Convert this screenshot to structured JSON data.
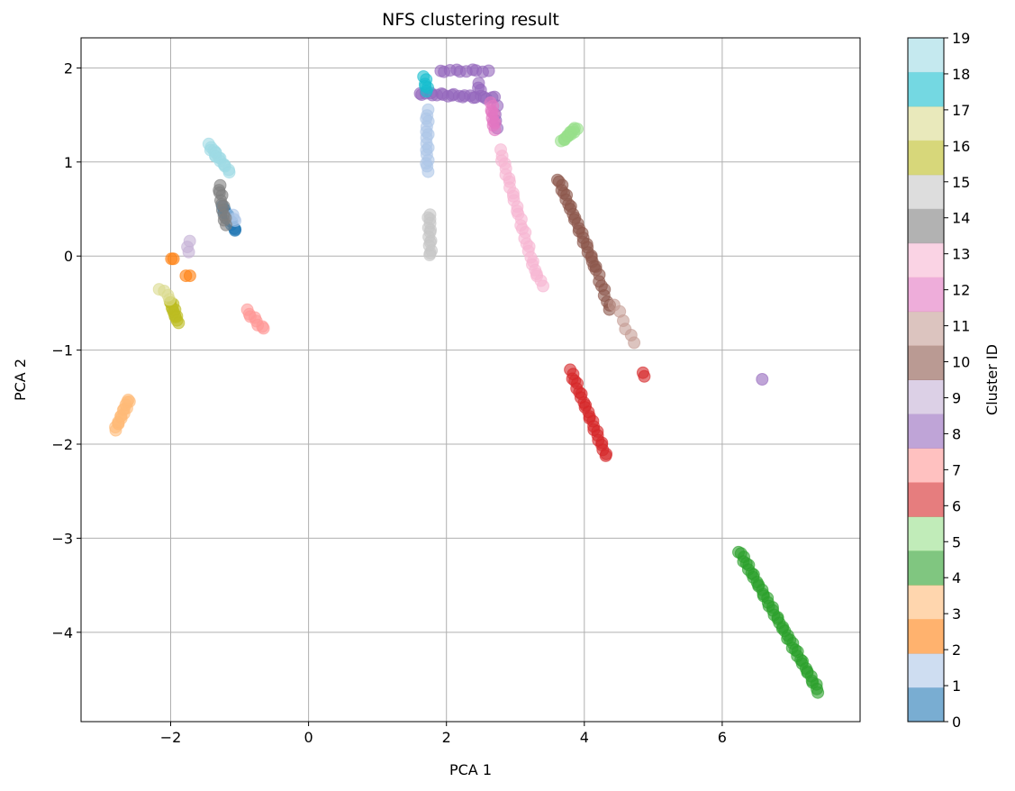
{
  "chart_data": {
    "type": "scatter",
    "title": "NFS clustering result",
    "xlabel": "PCA 1",
    "ylabel": "PCA 2",
    "xlim": [
      -3.3,
      8.0
    ],
    "ylim": [
      -4.95,
      2.32
    ],
    "xticks": [
      -2,
      0,
      2,
      4,
      6
    ],
    "yticks": [
      -4,
      -3,
      -2,
      -1,
      0,
      1,
      2
    ],
    "grid": true,
    "marker_alpha": 0.6,
    "colorbar": {
      "label": "Cluster ID",
      "ticks": [
        0,
        1,
        2,
        3,
        4,
        5,
        6,
        7,
        8,
        9,
        10,
        11,
        12,
        13,
        14,
        15,
        16,
        17,
        18,
        19
      ],
      "colors": [
        "#1f77b4",
        "#aec7e8",
        "#ff7f0e",
        "#ffbb78",
        "#2ca02c",
        "#98df8a",
        "#d62728",
        "#ff9896",
        "#9467bd",
        "#c5b0d5",
        "#8c564b",
        "#c49c94",
        "#e377c2",
        "#f7b6d2",
        "#7f7f7f",
        "#c7c7c7",
        "#bcbd22",
        "#dbdb8d",
        "#17becf",
        "#9edae5"
      ]
    },
    "clusters": [
      {
        "id": 0,
        "segments": [
          [
            -1.25,
            0.52,
            -1.05,
            0.26,
            12
          ]
        ]
      },
      {
        "id": 1,
        "segments": [
          [
            -1.08,
            0.37,
            -1.08,
            0.44,
            3
          ],
          [
            1.72,
            1.55,
            1.72,
            0.9,
            16
          ]
        ]
      },
      {
        "id": 2,
        "segments": [
          [
            -1.99,
            -0.03,
            -1.96,
            -0.03,
            2
          ],
          [
            -1.78,
            -0.21,
            -1.72,
            -0.21,
            2
          ]
        ]
      },
      {
        "id": 3,
        "segments": [
          [
            -2.8,
            -1.84,
            -2.6,
            -1.52,
            16
          ]
        ]
      },
      {
        "id": 4,
        "segments": [
          [
            6.25,
            -3.14,
            7.4,
            -4.63,
            48
          ]
        ]
      },
      {
        "id": 5,
        "segments": [
          [
            3.68,
            1.22,
            3.88,
            1.36,
            14
          ]
        ]
      },
      {
        "id": 6,
        "segments": [
          [
            3.8,
            -1.22,
            4.32,
            -2.13,
            26
          ],
          [
            4.85,
            -1.24,
            4.87,
            -1.28,
            2
          ]
        ]
      },
      {
        "id": 7,
        "segments": [
          [
            -0.9,
            -0.58,
            -0.65,
            -0.78,
            8
          ]
        ]
      },
      {
        "id": 8,
        "segments": [
          [
            1.6,
            1.73,
            2.7,
            1.68,
            22
          ],
          [
            1.9,
            1.97,
            2.6,
            1.97,
            10
          ],
          [
            2.45,
            1.84,
            2.5,
            1.76,
            3
          ],
          [
            2.72,
            1.6,
            2.72,
            1.35,
            4
          ],
          [
            6.58,
            -1.31,
            6.58,
            -1.31,
            1
          ]
        ]
      },
      {
        "id": 9,
        "segments": [
          [
            -1.73,
            0.17,
            -1.75,
            0.03,
            3
          ]
        ]
      },
      {
        "id": 10,
        "segments": [
          [
            3.62,
            0.82,
            4.15,
            -0.1,
            26
          ],
          [
            4.15,
            -0.1,
            4.38,
            -0.58,
            10
          ]
        ]
      },
      {
        "id": 11,
        "segments": [
          [
            4.45,
            -0.52,
            4.72,
            -0.93,
            6
          ]
        ]
      },
      {
        "id": 12,
        "segments": [
          [
            2.65,
            1.62,
            2.7,
            1.35,
            10
          ]
        ]
      },
      {
        "id": 13,
        "segments": [
          [
            2.78,
            1.12,
            3.3,
            -0.2,
            28
          ],
          [
            3.3,
            -0.2,
            3.42,
            -0.31,
            3
          ]
        ]
      },
      {
        "id": 14,
        "segments": [
          [
            -1.3,
            0.75,
            -1.2,
            0.33,
            12
          ]
        ]
      },
      {
        "id": 15,
        "segments": [
          [
            1.75,
            0.45,
            1.77,
            0.0,
            14
          ]
        ]
      },
      {
        "id": 16,
        "segments": [
          [
            -2.0,
            -0.48,
            -1.9,
            -0.7,
            12
          ]
        ]
      },
      {
        "id": 17,
        "segments": [
          [
            -2.15,
            -0.35,
            -2.0,
            -0.45,
            4
          ]
        ]
      },
      {
        "id": 18,
        "segments": [
          [
            1.68,
            1.9,
            1.72,
            1.75,
            6
          ]
        ]
      },
      {
        "id": 19,
        "segments": [
          [
            -1.45,
            1.18,
            -1.15,
            0.9,
            14
          ],
          [
            -1.35,
            1.06,
            -1.35,
            1.1,
            2
          ]
        ]
      }
    ]
  }
}
